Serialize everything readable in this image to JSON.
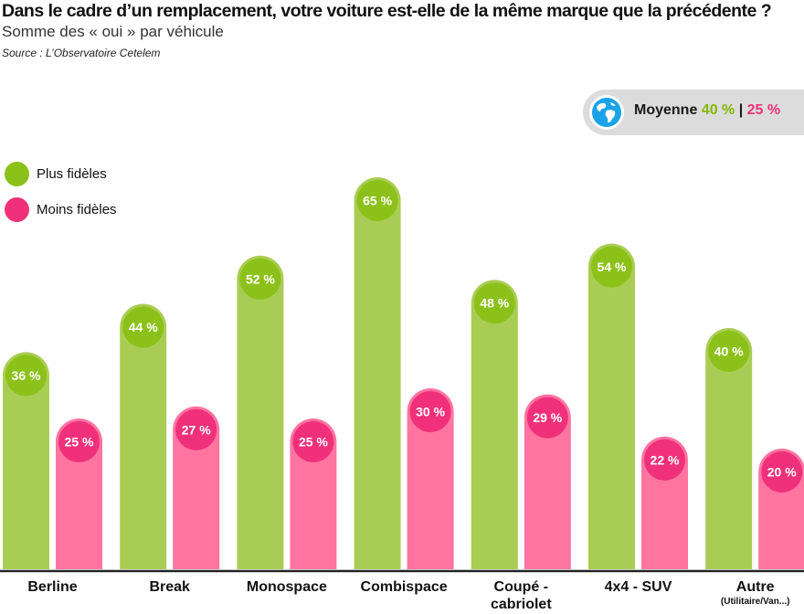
{
  "header": {
    "title": "Dans le cadre d’un remplacement, votre voiture est-elle de la même marque que la précédente ?",
    "subtitle": "Somme des « oui » par véhicule",
    "source": "Source : L’Observatoire Cetelem"
  },
  "average": {
    "label": "Moyenne",
    "green_value": "40 %",
    "separator": "|",
    "pink_value": "25 %",
    "icon": "globe-icon"
  },
  "legend": [
    {
      "label": "Plus fidèles",
      "color": "#8cc11a"
    },
    {
      "label": "Moins fidèles",
      "color": "#f0307a"
    }
  ],
  "category_notes": [
    "",
    "",
    "",
    "",
    "",
    "",
    "(Utilitaire/Van...)"
  ],
  "colors": {
    "green_bar": "#a9cd54",
    "green_cap": "#8cc11a",
    "pink_bar": "#ff74a0",
    "pink_cap": "#f0307a",
    "axis": "#222222"
  },
  "chart_data": {
    "type": "bar",
    "categories": [
      "Berline",
      "Break",
      "Monospace",
      "Combispace",
      "Coupé - cabriolet",
      "4x4 - SUV",
      "Autre"
    ],
    "series": [
      {
        "name": "Plus fidèles",
        "values": [
          36,
          44,
          52,
          65,
          48,
          54,
          40
        ]
      },
      {
        "name": "Moins fidèles",
        "values": [
          25,
          27,
          25,
          30,
          29,
          22,
          20
        ]
      }
    ],
    "value_suffix": " %",
    "ylim": [
      0,
      70
    ],
    "grid": false,
    "legend_position": "left"
  }
}
